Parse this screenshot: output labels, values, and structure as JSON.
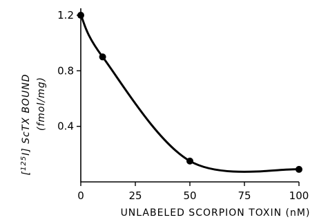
{
  "chart_data": {
    "type": "line",
    "title": "",
    "xlabel": "UNLABELED SCORPION TOXIN (nM)",
    "ylabel": "[125I] ScTX BOUND",
    "ylabel_sup": "125",
    "ylabel_line2": "(fmol/mg)",
    "xlim": [
      0,
      100
    ],
    "ylim": [
      0,
      1.25
    ],
    "xticks": [
      0,
      25,
      50,
      75,
      100
    ],
    "yticks": [
      0.4,
      0.8,
      1.2
    ],
    "xtick_labels": [
      "0",
      "25",
      "50",
      "75",
      "100"
    ],
    "ytick_labels": [
      "0.4",
      "0.8",
      "1.2"
    ],
    "grid": false,
    "series": [
      {
        "x": [
          0,
          10,
          50,
          100
        ],
        "y": [
          1.2,
          0.9,
          0.15,
          0.09
        ]
      }
    ]
  }
}
